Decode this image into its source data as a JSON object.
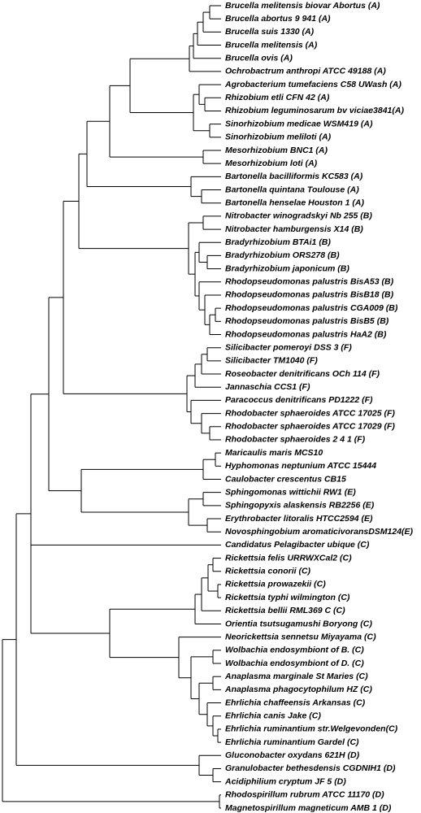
{
  "leaves": [
    "Brucella melitensis biovar Abortus (A)",
    "Brucella abortus 9 941 (A)",
    "Brucella suis 1330 (A)",
    "Brucella melitensis (A)",
    "Brucella ovis (A)",
    "Ochrobactrum anthropi ATCC 49188 (A)",
    "Agrobacterium tumefaciens C58 UWash (A)",
    "Rhizobium etli CFN 42 (A)",
    "Rhizobium leguminosarum bv viciae3841(A)",
    "Sinorhizobium medicae WSM419 (A)",
    "Sinorhizobium meliloti (A)",
    "Mesorhizobium BNC1 (A)",
    "Mesorhizobium loti (A)",
    "Bartonella bacilliformis KC583 (A)",
    "Bartonella quintana Toulouse (A)",
    "Bartonella henselae Houston 1 (A)",
    "Nitrobacter winogradskyi Nb 255 (B)",
    "Nitrobacter hamburgensis X14 (B)",
    "Bradyrhizobium BTAi1 (B)",
    "Bradyrhizobium ORS278 (B)",
    "Bradyrhizobium japonicum (B)",
    "Rhodopseudomonas palustris BisA53 (B)",
    "Rhodopseudomonas palustris BisB18 (B)",
    "Rhodopseudomonas palustris CGA009 (B)",
    "Rhodopseudomonas palustris BisB5 (B)",
    "Rhodopseudomonas palustris HaA2 (B)",
    "Silicibacter pomeroyi DSS 3 (F)",
    "Silicibacter TM1040 (F)",
    "Roseobacter denitrificans OCh 114 (F)",
    "Jannaschia CCS1 (F)",
    "Paracoccus denitrificans PD1222 (F)",
    "Rhodobacter sphaeroides ATCC 17025 (F)",
    "Rhodobacter sphaeroides ATCC 17029 (F)",
    "Rhodobacter sphaeroides 2 4 1 (F)",
    "Maricaulis maris MCS10",
    "Hyphomonas neptunium ATCC 15444",
    "Caulobacter crescentus CB15",
    "Sphingomonas wittichii RW1 (E)",
    "Sphingopyxis alaskensis RB2256 (E)",
    "Erythrobacter litoralis HTCC2594 (E)",
    "Novosphingobium aromaticivoransDSM124(E)",
    "Candidatus Pelagibacter ubique (C)",
    "Rickettsia felis URRWXCal2 (C)",
    "Rickettsia conorii (C)",
    "Rickettsia prowazekii (C)",
    "Rickettsia typhi wilmington (C)",
    "Rickettsia bellii RML369 C (C)",
    "Orientia tsutsugamushi Boryong (C)",
    "Neorickettsia sennetsu Miyayama (C)",
    "Wolbachia endosymbiont of B. (C)",
    "Wolbachia endosymbiont of D. (C)",
    "Anaplasma marginale St Maries (C)",
    "Anaplasma phagocytophilum HZ (C)",
    "Ehrlichia chaffeensis Arkansas (C)",
    "Ehrlichia canis Jake (C)",
    "Ehrlichia ruminantium str.Welgevonden(C)",
    "Ehrlichia ruminantium Gardel (C)",
    "Gluconobacter oxydans 621H (D)",
    "Granulobacter bethesdensis CGDNIH1 (D)",
    "Acidiphilium cryptum JF 5 (D)",
    "Rhodospirillum rubrum ATCC 11170 (D)",
    "Magnetospirillum magneticum AMB 1 (D)"
  ]
}
